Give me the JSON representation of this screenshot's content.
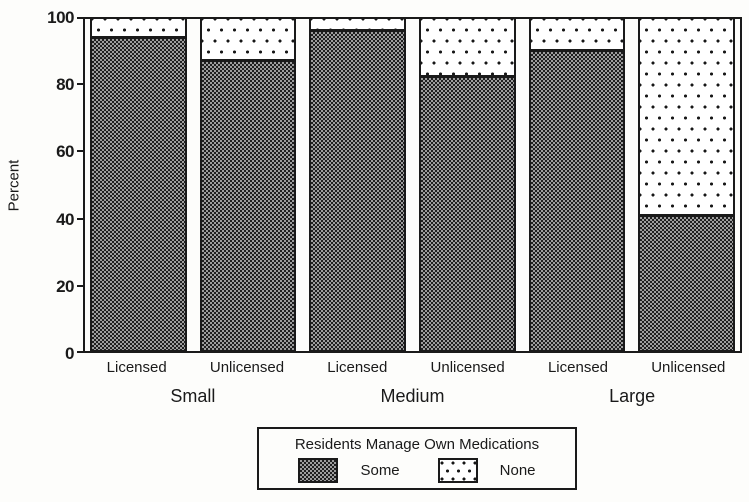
{
  "chart_data": {
    "type": "bar",
    "stacked": true,
    "title": "",
    "ylabel": "Percent",
    "xlabel": "",
    "ylim": [
      0,
      100
    ],
    "yticks": [
      0,
      20,
      40,
      60,
      80,
      100
    ],
    "grid": false,
    "groups": [
      "Small",
      "Medium",
      "Large"
    ],
    "categories": [
      "Licensed",
      "Unlicensed",
      "Licensed",
      "Unlicensed",
      "Licensed",
      "Unlicensed"
    ],
    "series": [
      {
        "name": "Some",
        "pattern": "dark-checker-fill",
        "values": [
          95,
          88,
          97,
          83,
          91,
          41
        ]
      },
      {
        "name": "None",
        "pattern": "white-dot-fill",
        "values": [
          5,
          12,
          3,
          17,
          9,
          59
        ]
      }
    ],
    "legend": {
      "title": "Residents Manage Own Medications",
      "position": "bottom",
      "entries": [
        "Some",
        "None"
      ]
    },
    "colors": {
      "ink": "#1a1a1a",
      "some_dark": "#1f1f1f",
      "some_light": "#9d9d9d",
      "none_background": "#ffffff",
      "page_background": "#fdfdfb"
    }
  }
}
